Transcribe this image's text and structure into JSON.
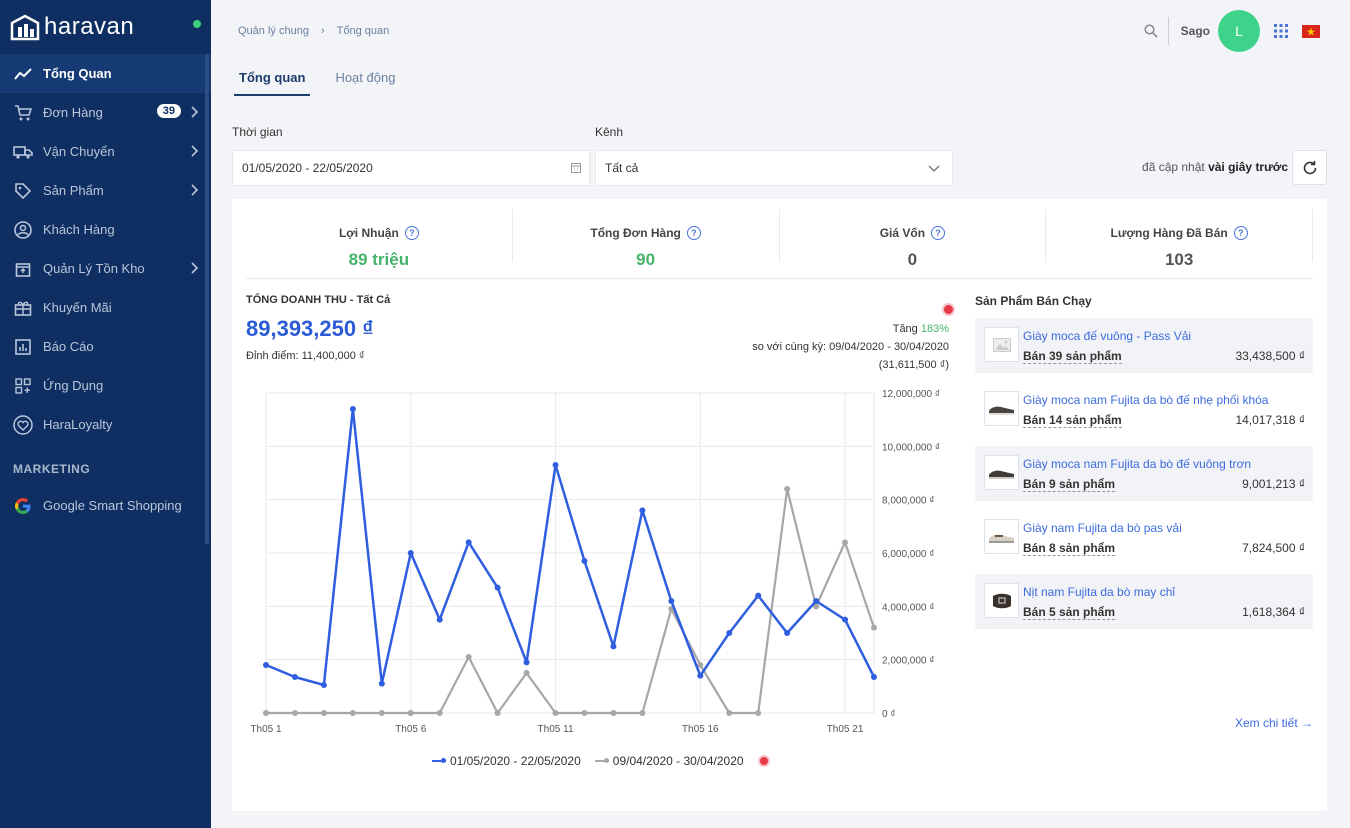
{
  "brand": {
    "name": "haravan"
  },
  "sidebar": {
    "items": [
      {
        "label": "Tổng Quan",
        "icon": "trend-icon"
      },
      {
        "label": "Đơn Hàng",
        "icon": "cart-icon",
        "badge": "39"
      },
      {
        "label": "Vận Chuyển",
        "icon": "truck-icon"
      },
      {
        "label": "Sản Phẩm",
        "icon": "tag-icon"
      },
      {
        "label": "Khách Hàng",
        "icon": "user-icon"
      },
      {
        "label": "Quản Lý Tồn Kho",
        "icon": "box-icon"
      },
      {
        "label": "Khuyến Mãi",
        "icon": "gift-icon"
      },
      {
        "label": "Báo Cáo",
        "icon": "report-icon"
      },
      {
        "label": "Ứng Dụng",
        "icon": "apps-icon"
      },
      {
        "label": "HaraLoyalty",
        "icon": "heart-icon"
      }
    ],
    "section": "MARKETING",
    "marketing_item": "Google Smart Shopping"
  },
  "header": {
    "breadcrumb": [
      "Quản lý chung",
      "Tổng quan"
    ],
    "user_name": "Sago",
    "avatar_letter": "L"
  },
  "tabs": [
    "Tổng quan",
    "Hoạt động"
  ],
  "filters": {
    "time_label": "Thời gian",
    "time_value": "01/05/2020 - 22/05/2020",
    "channel_label": "Kênh",
    "channel_value": "Tất cả",
    "updated_prefix": "đã cập nhật ",
    "updated_bold": "vài giây trước"
  },
  "kpis": [
    {
      "label": "Lợi Nhuận",
      "value": "89 triệu",
      "color": "#45b36b"
    },
    {
      "label": "Tổng Đơn Hàng",
      "value": "90",
      "color": "#45b36b"
    },
    {
      "label": "Giá Vốn",
      "value": "0",
      "color": "#555555"
    },
    {
      "label": "Lượng Hàng Đã Bán",
      "value": "103",
      "color": "#555555"
    }
  ],
  "revenue": {
    "title": "TỔNG DOANH THU - Tất Cả",
    "total": "89,393,250 ₫",
    "peak": "Đỉnh điểm: 11,400,000 ₫",
    "increase_label": "Tăng ",
    "increase_pct": "183%",
    "compare_text": "so với cùng kỳ: 09/04/2020 - 30/04/2020",
    "compare_amount": "(31,611,500 ₫)"
  },
  "chart_data": {
    "type": "line",
    "x": [
      "Th05 1",
      "Th05 2",
      "Th05 3",
      "Th05 4",
      "Th05 5",
      "Th05 6",
      "Th05 7",
      "Th05 8",
      "Th05 9",
      "Th05 10",
      "Th05 11",
      "Th05 12",
      "Th05 13",
      "Th05 14",
      "Th05 15",
      "Th05 16",
      "Th05 17",
      "Th05 18",
      "Th05 19",
      "Th05 20",
      "Th05 21",
      "Th05 22"
    ],
    "x_tick_labels": [
      "Th05 1",
      "Th05 6",
      "Th05 11",
      "Th05 16",
      "Th05 21"
    ],
    "x_tick_indices": [
      0,
      5,
      10,
      15,
      20
    ],
    "y_ticks": [
      "0 ₫",
      "2,000,000 ₫",
      "4,000,000 ₫",
      "6,000,000 ₫",
      "8,000,000 ₫",
      "10,000,000 ₫",
      "12,000,000 ₫"
    ],
    "ylim": [
      0,
      12000000
    ],
    "series": [
      {
        "name": "01/05/2020 - 22/05/2020",
        "color": "#2f5fe0",
        "values": [
          1800000,
          1350000,
          1050000,
          11400000,
          1100000,
          6000000,
          3500000,
          6400000,
          4700000,
          1900000,
          9300000,
          5700000,
          2500000,
          7600000,
          4200000,
          1400000,
          3000000,
          4400000,
          3000000,
          4200000,
          3500000,
          1350000
        ]
      },
      {
        "name": "09/04/2020 - 30/04/2020",
        "color": "#a7a7a7",
        "values": [
          0,
          0,
          0,
          0,
          0,
          0,
          0,
          2100000,
          0,
          1500000,
          0,
          0,
          0,
          0,
          3900000,
          1800000,
          0,
          0,
          8400000,
          4000000,
          6400000,
          3200000
        ]
      }
    ]
  },
  "best_sellers": {
    "title": "Sản Phẩm Bán Chạy",
    "items": [
      {
        "name": "Giày moca đế vuông - Pass Vải",
        "qty": "Bán 39 sản phẩm",
        "amount": "33,438,500 ₫",
        "thumb": "placeholder-image-icon"
      },
      {
        "name": "Giày moca nam Fujita da bò đế nhẹ phối khóa",
        "qty": "Bán 14 sản phẩm",
        "amount": "14,017,318 ₫",
        "thumb": "shoe-image"
      },
      {
        "name": "Giày moca nam Fujita da bò đế vuông trơn",
        "qty": "Bán 9 sản phẩm",
        "amount": "9,001,213 ₫",
        "thumb": "shoe-image"
      },
      {
        "name": "Giày nam Fujita da bò pas vải",
        "qty": "Bán 8 sản phẩm",
        "amount": "7,824,500 ₫",
        "thumb": "shoe-image"
      },
      {
        "name": "Nịt nam Fujita da bò may chỉ",
        "qty": "Bán 5 sản phẩm",
        "amount": "1,618,364 ₫",
        "thumb": "belt-image"
      }
    ],
    "more": "Xem chi tiết →"
  }
}
